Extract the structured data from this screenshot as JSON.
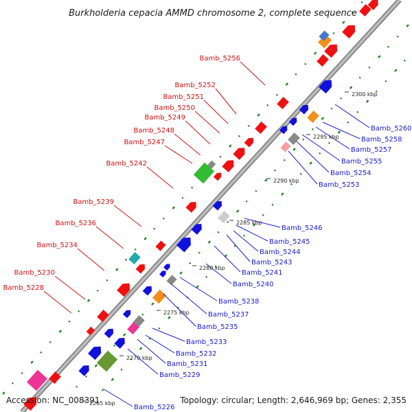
{
  "title": "Burkholderia cepacia AMMD chromosome 2, complete sequence",
  "accession": "Accession: NC_008391",
  "topology": "Topology: circular; Length: 2,646,969 bp; Genes: 2,355",
  "colors": {
    "forward": "#ee1111",
    "reverse": "#1111dd",
    "forward_label": "#cc1111",
    "reverse_label": "#1a1acc",
    "backbone": "#999999",
    "gc_dots": "#228822"
  },
  "scale_ticks": [
    "2265 kbp",
    "2270 kbp",
    "2275 kbp",
    "2280 kbp",
    "2285 kbp",
    "2290 kbp",
    "2295 kbp",
    "2300 kbp"
  ],
  "forward_labels": [
    "Bamb_5256",
    "Bamb_5252",
    "Bamb_5251",
    "Bamb_5250",
    "Bamb_5249",
    "Bamb_5248",
    "Bamb_5247",
    "Bamb_5242",
    "Bamb_5239",
    "Bamb_5236",
    "Bamb_5234",
    "Bamb_5230",
    "Bamb_5228"
  ],
  "reverse_labels": [
    "Bamb_5260",
    "Bamb_5258",
    "Bamb_5257",
    "Bamb_5255",
    "Bamb_5254",
    "Bamb_5253",
    "Bamb_5246",
    "Bamb_5245",
    "Bamb_5244",
    "Bamb_5243",
    "Bamb_5241",
    "Bamb_5240",
    "Bamb_5238",
    "Bamb_5237",
    "Bamb_5235",
    "Bamb_5233",
    "Bamb_5232",
    "Bamb_5231",
    "Bamb_5229",
    "Bamb_5226"
  ]
}
